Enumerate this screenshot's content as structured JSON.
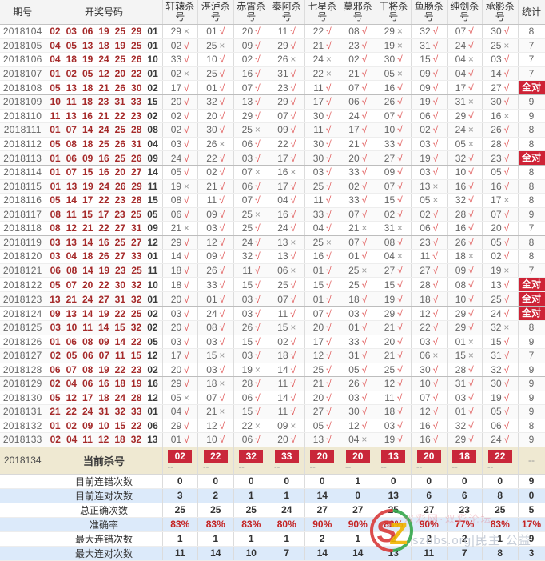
{
  "table": {
    "headers": {
      "period": "期号",
      "draw": "开奖号码",
      "kills": [
        "轩辕杀号",
        "湛泸杀号",
        "赤霄杀号",
        "泰阿杀号",
        "七星杀号",
        "莫邪杀号",
        "干将杀号",
        "鱼肠杀号",
        "纯剑杀号",
        "承影杀号"
      ],
      "stat": "统计"
    },
    "all_correct_label": "全对",
    "rows": [
      {
        "period": "2018104",
        "reds": [
          "02",
          "03",
          "06",
          "19",
          "25",
          "29"
        ],
        "blue": "01",
        "kills": [
          "29x",
          "01v",
          "20v",
          "11v",
          "22v",
          "08v",
          "29x",
          "32v",
          "07v",
          "30v"
        ],
        "stat": "8"
      },
      {
        "period": "2018105",
        "reds": [
          "04",
          "05",
          "13",
          "18",
          "19",
          "25"
        ],
        "blue": "01",
        "kills": [
          "02v",
          "25x",
          "09v",
          "29v",
          "21v",
          "23v",
          "19x",
          "31v",
          "24v",
          "25x"
        ],
        "stat": "7"
      },
      {
        "period": "2018106",
        "reds": [
          "04",
          "18",
          "19",
          "24",
          "25",
          "26"
        ],
        "blue": "10",
        "kills": [
          "33v",
          "10v",
          "02v",
          "26x",
          "24x",
          "02v",
          "30v",
          "15v",
          "04x",
          "03v"
        ],
        "stat": "7"
      },
      {
        "period": "2018107",
        "reds": [
          "01",
          "02",
          "05",
          "12",
          "20",
          "22"
        ],
        "blue": "01",
        "kills": [
          "02x",
          "25v",
          "16v",
          "31v",
          "22x",
          "21v",
          "05x",
          "09v",
          "04v",
          "14v"
        ],
        "stat": "7"
      },
      {
        "period": "2018108",
        "reds": [
          "05",
          "13",
          "18",
          "21",
          "26",
          "30"
        ],
        "blue": "02",
        "kills": [
          "17v",
          "01v",
          "07v",
          "23v",
          "11v",
          "07v",
          "16v",
          "09v",
          "17v",
          "27v"
        ],
        "stat": "全对"
      },
      {
        "period": "2018109",
        "reds": [
          "10",
          "11",
          "18",
          "23",
          "31",
          "33"
        ],
        "blue": "15",
        "kills": [
          "20v",
          "32v",
          "13v",
          "29v",
          "17v",
          "06v",
          "26v",
          "19v",
          "31x",
          "30v"
        ],
        "stat": "9"
      },
      {
        "period": "2018110",
        "reds": [
          "11",
          "13",
          "16",
          "21",
          "22",
          "23"
        ],
        "blue": "02",
        "kills": [
          "02v",
          "20v",
          "29v",
          "07v",
          "30v",
          "24v",
          "07v",
          "06v",
          "29v",
          "16x"
        ],
        "stat": "9"
      },
      {
        "period": "2018111",
        "reds": [
          "01",
          "07",
          "14",
          "24",
          "25",
          "28"
        ],
        "blue": "08",
        "kills": [
          "02v",
          "30v",
          "25x",
          "09v",
          "11v",
          "17v",
          "10v",
          "02v",
          "24x",
          "26v"
        ],
        "stat": "8"
      },
      {
        "period": "2018112",
        "reds": [
          "05",
          "08",
          "18",
          "25",
          "26",
          "31"
        ],
        "blue": "04",
        "kills": [
          "03v",
          "26x",
          "06v",
          "22v",
          "30v",
          "21v",
          "33v",
          "03v",
          "05x",
          "28v"
        ],
        "stat": "8"
      },
      {
        "period": "2018113",
        "reds": [
          "01",
          "06",
          "09",
          "16",
          "25",
          "26"
        ],
        "blue": "09",
        "kills": [
          "24v",
          "22v",
          "03v",
          "17v",
          "30v",
          "20v",
          "27v",
          "19v",
          "32v",
          "23v"
        ],
        "stat": "全对"
      },
      {
        "period": "2018114",
        "reds": [
          "01",
          "07",
          "15",
          "16",
          "20",
          "27"
        ],
        "blue": "14",
        "kills": [
          "05v",
          "02v",
          "07x",
          "16x",
          "03v",
          "33v",
          "09v",
          "03v",
          "10v",
          "05v"
        ],
        "stat": "8"
      },
      {
        "period": "2018115",
        "reds": [
          "01",
          "13",
          "19",
          "24",
          "26",
          "29"
        ],
        "blue": "11",
        "kills": [
          "19x",
          "21v",
          "06v",
          "17v",
          "25v",
          "02v",
          "07v",
          "13x",
          "16v",
          "16v"
        ],
        "stat": "8"
      },
      {
        "period": "2018116",
        "reds": [
          "05",
          "14",
          "17",
          "22",
          "23",
          "28"
        ],
        "blue": "15",
        "kills": [
          "08v",
          "11v",
          "07v",
          "04v",
          "11v",
          "33v",
          "15v",
          "05x",
          "32v",
          "17x"
        ],
        "stat": "8"
      },
      {
        "period": "2018117",
        "reds": [
          "08",
          "11",
          "15",
          "17",
          "23",
          "25"
        ],
        "blue": "05",
        "kills": [
          "06v",
          "09v",
          "25x",
          "16v",
          "33v",
          "07v",
          "02v",
          "02v",
          "28v",
          "07v"
        ],
        "stat": "9"
      },
      {
        "period": "2018118",
        "reds": [
          "08",
          "12",
          "21",
          "22",
          "27",
          "31"
        ],
        "blue": "09",
        "kills": [
          "21x",
          "03v",
          "25v",
          "24v",
          "04v",
          "21x",
          "31x",
          "06v",
          "16v",
          "20v"
        ],
        "stat": "7"
      },
      {
        "period": "2018119",
        "reds": [
          "03",
          "13",
          "14",
          "16",
          "25",
          "27"
        ],
        "blue": "12",
        "kills": [
          "29v",
          "12v",
          "24v",
          "13x",
          "25x",
          "07v",
          "08v",
          "23v",
          "26v",
          "05v"
        ],
        "stat": "8"
      },
      {
        "period": "2018120",
        "reds": [
          "03",
          "04",
          "18",
          "26",
          "27",
          "33"
        ],
        "blue": "01",
        "kills": [
          "14v",
          "09v",
          "32v",
          "13v",
          "16v",
          "01v",
          "04x",
          "11v",
          "18x",
          "02v"
        ],
        "stat": "8"
      },
      {
        "period": "2018121",
        "reds": [
          "06",
          "08",
          "14",
          "19",
          "23",
          "25"
        ],
        "blue": "11",
        "kills": [
          "18v",
          "26v",
          "11v",
          "06x",
          "01v",
          "25x",
          "27v",
          "27v",
          "09v",
          "19x"
        ],
        "stat": "7"
      },
      {
        "period": "2018122",
        "reds": [
          "05",
          "07",
          "20",
          "22",
          "30",
          "32"
        ],
        "blue": "10",
        "kills": [
          "18v",
          "33v",
          "15v",
          "25v",
          "15v",
          "25v",
          "15v",
          "28v",
          "08v",
          "13v"
        ],
        "stat": "全对"
      },
      {
        "period": "2018123",
        "reds": [
          "13",
          "21",
          "24",
          "27",
          "31",
          "32"
        ],
        "blue": "01",
        "kills": [
          "20v",
          "01v",
          "03v",
          "07v",
          "01v",
          "18v",
          "19v",
          "18v",
          "10v",
          "25v"
        ],
        "stat": "全对"
      },
      {
        "period": "2018124",
        "reds": [
          "09",
          "13",
          "14",
          "19",
          "22",
          "25"
        ],
        "blue": "02",
        "kills": [
          "03v",
          "24v",
          "03v",
          "11v",
          "07v",
          "03v",
          "29v",
          "12v",
          "29v",
          "24v"
        ],
        "stat": "全对"
      },
      {
        "period": "2018125",
        "reds": [
          "03",
          "10",
          "11",
          "14",
          "15",
          "32"
        ],
        "blue": "02",
        "kills": [
          "20v",
          "08v",
          "26v",
          "15x",
          "20v",
          "01v",
          "21v",
          "22v",
          "29v",
          "32x"
        ],
        "stat": "8"
      },
      {
        "period": "2018126",
        "reds": [
          "01",
          "06",
          "08",
          "09",
          "14",
          "22"
        ],
        "blue": "05",
        "kills": [
          "03v",
          "03v",
          "15v",
          "02v",
          "17v",
          "33v",
          "20v",
          "03v",
          "01x",
          "15v"
        ],
        "stat": "9"
      },
      {
        "period": "2018127",
        "reds": [
          "02",
          "05",
          "06",
          "07",
          "11",
          "15"
        ],
        "blue": "12",
        "kills": [
          "17v",
          "15x",
          "03v",
          "18v",
          "12v",
          "31v",
          "21v",
          "06x",
          "15x",
          "31v"
        ],
        "stat": "7"
      },
      {
        "period": "2018128",
        "reds": [
          "06",
          "07",
          "08",
          "19",
          "22",
          "23"
        ],
        "blue": "02",
        "kills": [
          "20v",
          "03v",
          "19x",
          "14v",
          "25v",
          "05v",
          "25v",
          "30v",
          "28v",
          "32v"
        ],
        "stat": "9"
      },
      {
        "period": "2018129",
        "reds": [
          "02",
          "04",
          "06",
          "16",
          "18",
          "19"
        ],
        "blue": "16",
        "kills": [
          "29v",
          "18x",
          "28v",
          "11v",
          "21v",
          "26v",
          "12v",
          "10v",
          "31v",
          "30v"
        ],
        "stat": "9"
      },
      {
        "period": "2018130",
        "reds": [
          "05",
          "12",
          "17",
          "18",
          "24",
          "28"
        ],
        "blue": "12",
        "kills": [
          "05x",
          "07v",
          "06v",
          "14v",
          "20v",
          "03v",
          "11v",
          "07v",
          "03v",
          "19v"
        ],
        "stat": "9"
      },
      {
        "period": "2018131",
        "reds": [
          "21",
          "22",
          "24",
          "31",
          "32",
          "33"
        ],
        "blue": "01",
        "kills": [
          "04v",
          "21x",
          "15v",
          "11v",
          "27v",
          "30v",
          "18v",
          "12v",
          "01v",
          "05v"
        ],
        "stat": "9"
      },
      {
        "period": "2018132",
        "reds": [
          "01",
          "02",
          "09",
          "10",
          "15",
          "22"
        ],
        "blue": "06",
        "kills": [
          "29v",
          "12v",
          "22x",
          "09x",
          "05v",
          "12v",
          "03v",
          "16v",
          "32v",
          "06v"
        ],
        "stat": "8"
      },
      {
        "period": "2018133",
        "reds": [
          "02",
          "04",
          "11",
          "12",
          "18",
          "32"
        ],
        "blue": "13",
        "kills": [
          "01v",
          "10v",
          "06v",
          "20v",
          "13v",
          "04x",
          "19v",
          "16v",
          "29v",
          "24v"
        ],
        "stat": "9"
      }
    ]
  },
  "current_row": {
    "period": "2018134",
    "label": "当前杀号",
    "kills": [
      "02",
      "22",
      "32",
      "33",
      "20",
      "20",
      "13",
      "20",
      "18",
      "22"
    ],
    "placeholder": "--",
    "stat": "--"
  },
  "summary_rows": [
    {
      "label": "目前连错次数",
      "values": [
        "0",
        "0",
        "0",
        "0",
        "0",
        "1",
        "0",
        "0",
        "0",
        "0"
      ],
      "stat": "9",
      "highlight": false
    },
    {
      "label": "目前连对次数",
      "values": [
        "3",
        "2",
        "1",
        "1",
        "14",
        "0",
        "13",
        "6",
        "6",
        "8"
      ],
      "stat": "0",
      "highlight": false
    },
    {
      "label": "总正确次数",
      "values": [
        "25",
        "25",
        "25",
        "24",
        "27",
        "27",
        "25",
        "27",
        "23",
        "25"
      ],
      "stat": "5",
      "highlight": false
    },
    {
      "label": "准确率",
      "values": [
        "83%",
        "83%",
        "83%",
        "80%",
        "90%",
        "90%",
        "83%",
        "90%",
        "77%",
        "83%"
      ],
      "stat": "17%",
      "highlight": true
    },
    {
      "label": "最大连错次数",
      "values": [
        "1",
        "1",
        "1",
        "1",
        "2",
        "1",
        "2",
        "2",
        "2",
        "1"
      ],
      "stat": "9",
      "highlight": false
    },
    {
      "label": "最大连对次数",
      "values": [
        "11",
        "14",
        "10",
        "7",
        "14",
        "14",
        "13",
        "11",
        "7",
        "8"
      ],
      "stat": "3",
      "highlight": false
    }
  ],
  "watermark": {
    "logo_letters": "SZ",
    "text": "szbbs.org|民主·公益",
    "sub_text": "双彩网·双彩论坛"
  },
  "colors": {
    "accent_red": "#ce2336",
    "number_red": "#a52a2a",
    "check_red": "#e05858",
    "cross_gray": "#9a9a9a",
    "current_row_bg": "#efe9d2",
    "summary_alt_bg": "#dceafa"
  }
}
